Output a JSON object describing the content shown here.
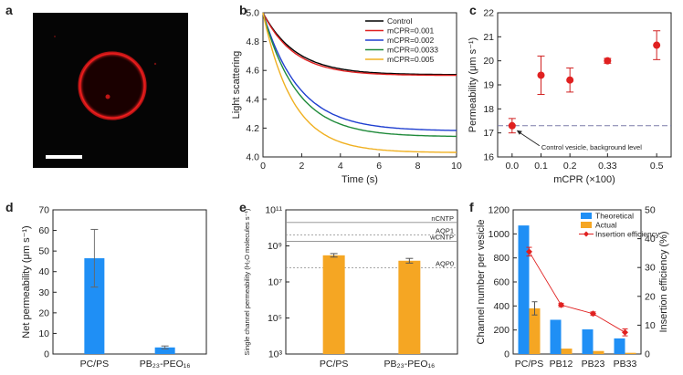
{
  "panels": {
    "a": {
      "label": "a"
    },
    "b": {
      "label": "b"
    },
    "c": {
      "label": "c"
    },
    "d": {
      "label": "d"
    },
    "e": {
      "label": "e"
    },
    "f": {
      "label": "f"
    }
  },
  "colors": {
    "blue": "#1f8ff5",
    "orange": "#f5a623",
    "red": "#e02020",
    "dark_red": "#c0392b"
  },
  "chart_data": [
    {
      "panel": "b",
      "type": "line",
      "xlabel": "Time (s)",
      "ylabel": "Light scattering",
      "xlim": [
        0,
        10
      ],
      "ylim": [
        4.0,
        5.0
      ],
      "xticks": [
        "0",
        "2",
        "4",
        "6",
        "8",
        "10"
      ],
      "yticks": [
        "4.0",
        "4.2",
        "4.4",
        "4.6",
        "4.8",
        "5.0"
      ],
      "legend_position": "top-right",
      "series": [
        {
          "name": "Control",
          "color": "#000000",
          "start": 5.0,
          "end": 4.57,
          "tau": 1.7
        },
        {
          "name": "mCPR=0.001",
          "color": "#e02020",
          "start": 5.0,
          "end": 4.565,
          "tau": 1.6
        },
        {
          "name": "mCPR=0.002",
          "color": "#1f3fd0",
          "start": 5.0,
          "end": 4.18,
          "tau": 1.85
        },
        {
          "name": "mCPR=0.0033",
          "color": "#1f8a3a",
          "start": 5.0,
          "end": 4.14,
          "tau": 1.75
        },
        {
          "name": "mCPR=0.005",
          "color": "#f0b020",
          "start": 5.0,
          "end": 4.03,
          "tau": 1.55
        }
      ]
    },
    {
      "panel": "c",
      "type": "scatter",
      "xlabel": "mCPR (×100)",
      "ylabel": "Permeability (μm s⁻¹)",
      "ylim": [
        16,
        22
      ],
      "categories": [
        "0.0",
        "0.1",
        "0.2",
        "0.33",
        "0.5"
      ],
      "yticks": [
        "16",
        "17",
        "18",
        "19",
        "20",
        "21",
        "22"
      ],
      "values": [
        17.3,
        19.4,
        19.2,
        20.0,
        20.65
      ],
      "errors": [
        0.3,
        0.8,
        0.5,
        0.1,
        0.6
      ],
      "baseline": 17.3,
      "annotation": "Control vesicle, background level"
    },
    {
      "panel": "d",
      "type": "bar",
      "ylabel": "Net permeability (μm s⁻¹)",
      "ylim": [
        0,
        70
      ],
      "yticks": [
        "0",
        "10",
        "20",
        "30",
        "40",
        "50",
        "60",
        "70"
      ],
      "categories": [
        "PC/PS",
        "PB₂₃-PEO₁₆"
      ],
      "values": [
        46.5,
        3.2
      ],
      "errors": [
        14,
        0.7
      ]
    },
    {
      "panel": "e",
      "type": "bar",
      "log_scale": true,
      "ylabel": "Single channel permeability (H₂O molecules s⁻¹)",
      "ylim": [
        1000,
        100000000000
      ],
      "yticks": [
        "10³",
        "10⁵",
        "10⁷",
        "10⁹",
        "10¹¹"
      ],
      "categories": [
        "PC/PS",
        "PB₂₃-PEO₁₆"
      ],
      "values": [
        300000000,
        150000000
      ],
      "err_factor": [
        1.25,
        1.35
      ],
      "reference_lines": [
        {
          "label": "nCNTP",
          "value": 20000000000,
          "style": "solid"
        },
        {
          "label": "AQP1",
          "value": 4000000000,
          "style": "dotted"
        },
        {
          "label": "wCNTP",
          "value": 1800000000,
          "style": "solid"
        },
        {
          "label": "AQP0",
          "value": 60000000,
          "style": "dotted"
        }
      ]
    },
    {
      "panel": "f",
      "type": "bar",
      "ylabel": "Channel number per vesicle",
      "ylabel_right": "Insertion efficiency (%)",
      "ylim": [
        0,
        1200
      ],
      "ylim_right": [
        0,
        50
      ],
      "yticks": [
        "0",
        "200",
        "400",
        "600",
        "800",
        "1000",
        "1200"
      ],
      "yticks_right": [
        "0",
        "10",
        "20",
        "30",
        "40",
        "50"
      ],
      "categories": [
        "PC/PS",
        "PB12",
        "PB23",
        "PB33"
      ],
      "legend_position": "top-right",
      "series": [
        {
          "name": "Theoretical",
          "color": "#1f8ff5",
          "values": [
            1070,
            285,
            205,
            130
          ],
          "errors": [
            0,
            0,
            0,
            0
          ]
        },
        {
          "name": "Actual",
          "color": "#f5a623",
          "values": [
            380,
            45,
            25,
            10
          ],
          "errors": [
            55,
            0,
            0,
            0
          ]
        },
        {
          "name": "Insertion efficiency",
          "color": "#e02020",
          "values": [
            35.5,
            17,
            14,
            7.5
          ],
          "errors": [
            1.5,
            0.6,
            0.6,
            1.2
          ]
        }
      ]
    }
  ]
}
